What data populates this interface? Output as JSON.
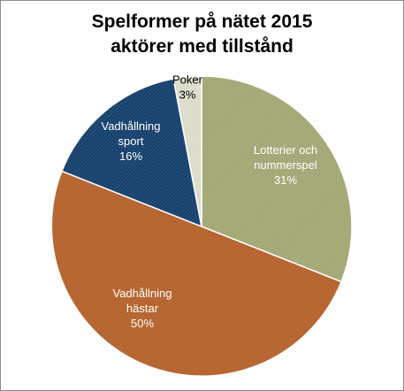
{
  "chart_data": {
    "type": "pie",
    "title_lines": [
      "Spelformer på nätet 2015",
      "aktörer med tillstånd"
    ],
    "slices": [
      {
        "label_lines": [
          "Lotterier och",
          "nummerspel"
        ],
        "value": 31,
        "value_label": "31%",
        "color": "#a3a774",
        "label_color": "#ffffff"
      },
      {
        "label_lines": [
          "Vadhållning",
          "hästar"
        ],
        "value": 50,
        "value_label": "50%",
        "color": "#b5622c",
        "label_color": "#ffffff"
      },
      {
        "label_lines": [
          "Vadhållning",
          "sport"
        ],
        "value": 16,
        "value_label": "16%",
        "color": "#15406d",
        "label_color": "#ffffff"
      },
      {
        "label_lines": [
          "Poker"
        ],
        "value": 3,
        "value_label": "3%",
        "color": "#dcdccb",
        "label_color": "#000000"
      }
    ],
    "start_angle_deg": 0,
    "direction": "clockwise",
    "legend": "none",
    "labels": "inside"
  }
}
